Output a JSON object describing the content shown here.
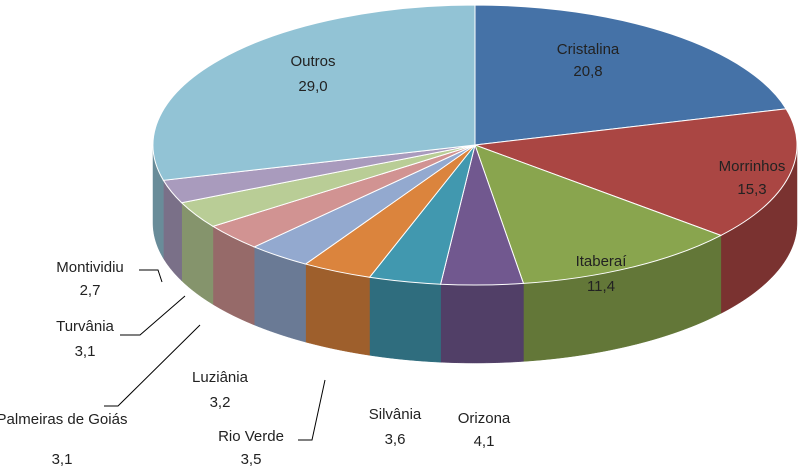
{
  "chart_data": {
    "type": "pie3d",
    "categories": [
      "Cristalina",
      "Morrinhos",
      "Itaberaí",
      "Orizona",
      "Silvânia",
      "Rio Verde",
      "Luziânia",
      "Palmeiras de Goiás",
      "Turvânia",
      "Montividiu",
      "Outros"
    ],
    "values": [
      20.8,
      15.3,
      11.4,
      4.1,
      3.6,
      3.5,
      3.2,
      3.1,
      3.1,
      2.7,
      29.0
    ],
    "value_labels": [
      "20,8",
      "15,3",
      "11,4",
      "4,1",
      "3,6",
      "3,5",
      "3,2",
      "3,1",
      "3,1",
      "2,7",
      "29,0"
    ],
    "colors": [
      "#4572a7",
      "#aa4643",
      "#89a54e",
      "#71588f",
      "#4198af",
      "#db843d",
      "#93a9cf",
      "#d19392",
      "#b9cd96",
      "#a99bbd",
      "#92c3d5"
    ]
  }
}
